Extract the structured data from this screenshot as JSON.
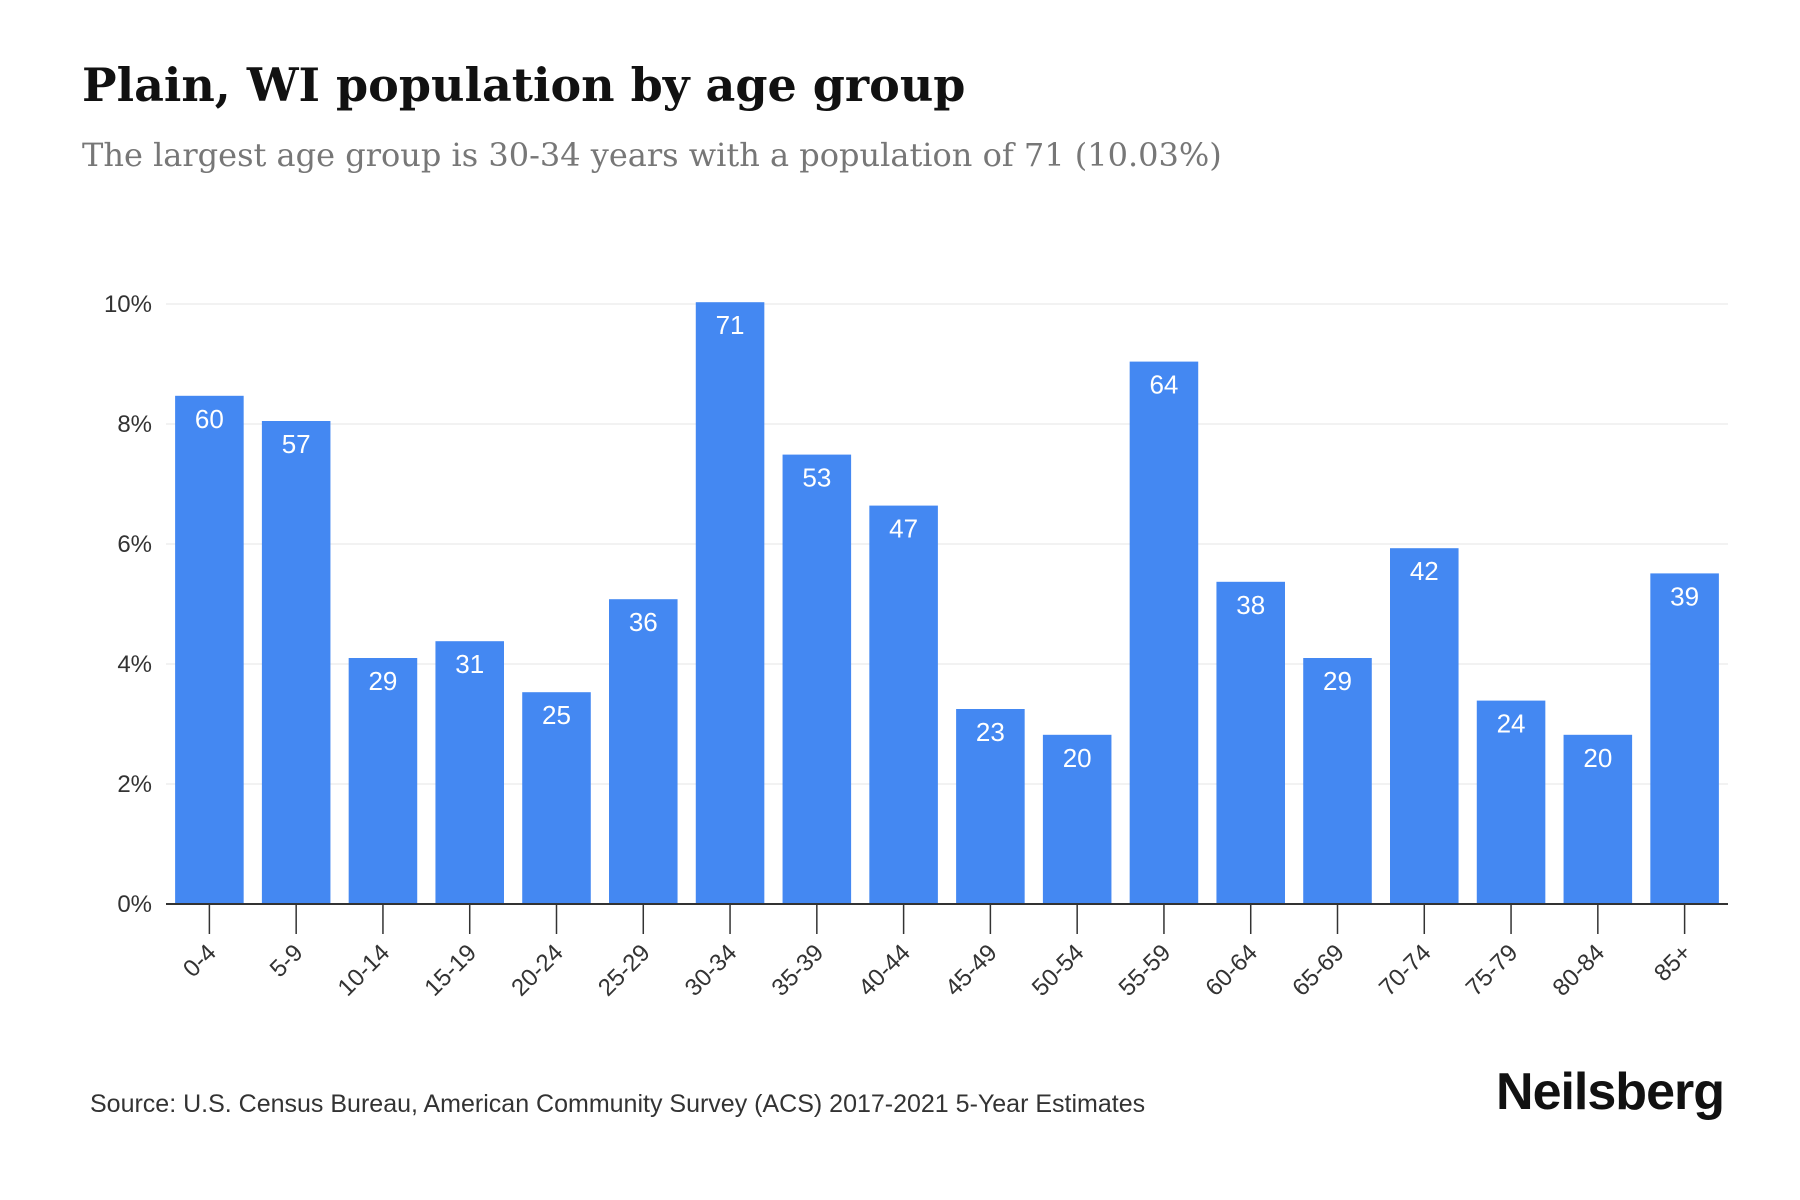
{
  "title": "Plain, WI population by age group",
  "subtitle": "The largest age group is 30-34 years with a population of 71 (10.03%)",
  "source": "Source: U.S. Census Bureau, American Community Survey (ACS) 2017-2021 5-Year Estimates",
  "brand": "Neilsberg",
  "colors": {
    "bar": "#4488f2",
    "grid": "#eeeeee",
    "axis": "#333333"
  },
  "chart_data": {
    "type": "bar",
    "categories": [
      "0-4",
      "5-9",
      "10-14",
      "15-19",
      "20-24",
      "25-29",
      "30-34",
      "35-39",
      "40-44",
      "45-49",
      "50-54",
      "55-59",
      "60-64",
      "65-69",
      "70-74",
      "75-79",
      "80-84",
      "85+"
    ],
    "values": [
      8.47,
      8.05,
      4.1,
      4.38,
      3.53,
      5.08,
      10.03,
      7.49,
      6.64,
      3.25,
      2.82,
      9.04,
      5.37,
      4.1,
      5.93,
      3.39,
      2.82,
      5.51
    ],
    "data_labels": [
      "60",
      "57",
      "29",
      "31",
      "25",
      "36",
      "71",
      "53",
      "47",
      "23",
      "20",
      "64",
      "38",
      "29",
      "42",
      "24",
      "20",
      "39"
    ],
    "yticks": [
      "0%",
      "2%",
      "4%",
      "6%",
      "8%",
      "10%"
    ],
    "ylim": [
      0,
      10
    ],
    "grid": true,
    "xlabel": "",
    "ylabel": ""
  }
}
